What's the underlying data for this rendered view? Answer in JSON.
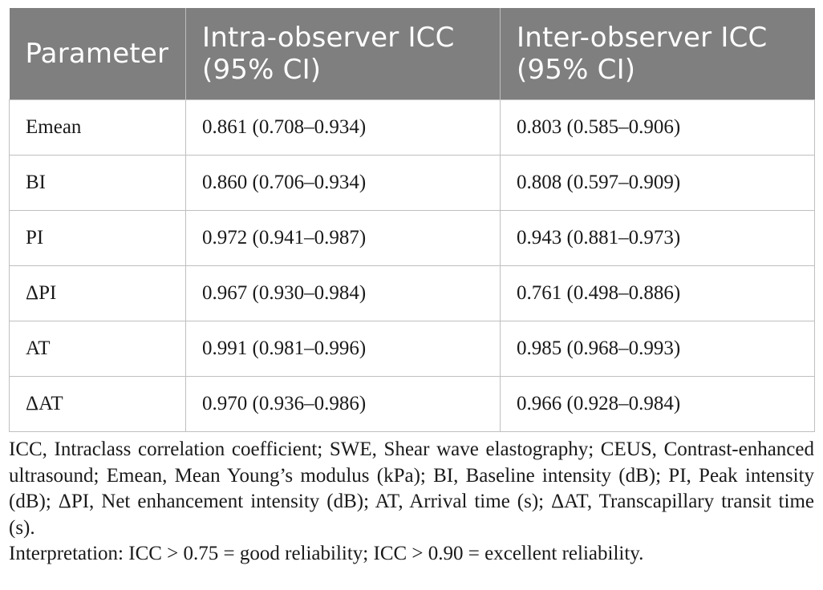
{
  "table": {
    "headers": [
      [
        "Parameter"
      ],
      [
        "Intra-observer ICC",
        "(95% CI)"
      ],
      [
        "Inter-observer ICC",
        "(95% CI)"
      ]
    ],
    "rows": [
      [
        "Emean",
        "0.861 (0.708–0.934)",
        "0.803 (0.585–0.906)"
      ],
      [
        "BI",
        "0.860 (0.706–0.934)",
        "0.808 (0.597–0.909)"
      ],
      [
        "PI",
        "0.972 (0.941–0.987)",
        "0.943 (0.881–0.973)"
      ],
      [
        "ΔPI",
        "0.967 (0.930–0.984)",
        "0.761 (0.498–0.886)"
      ],
      [
        "AT",
        "0.991 (0.981–0.996)",
        "0.985 (0.968–0.993)"
      ],
      [
        "ΔAT",
        "0.970 (0.936–0.986)",
        "0.966 (0.928–0.984)"
      ]
    ]
  },
  "footnotes": {
    "abbreviations": "ICC, Intraclass correlation coefficient; SWE, Shear wave elastography; CEUS, Contrast-enhanced ultrasound; Emean, Mean Young’s modulus (kPa); BI, Baseline intensity (dB); PI, Peak intensity (dB); ΔPI, Net enhancement intensity (dB); AT, Arrival time (s); ΔAT, Transcapillary transit time (s).",
    "interpretation": "Interpretation: ICC > 0.75 = good reliability; ICC > 0.90 = excellent reliability."
  },
  "colors": {
    "header_background": "#7f7f7f",
    "header_text": "#ffffff",
    "grid_lines": "#bfbfbf"
  }
}
